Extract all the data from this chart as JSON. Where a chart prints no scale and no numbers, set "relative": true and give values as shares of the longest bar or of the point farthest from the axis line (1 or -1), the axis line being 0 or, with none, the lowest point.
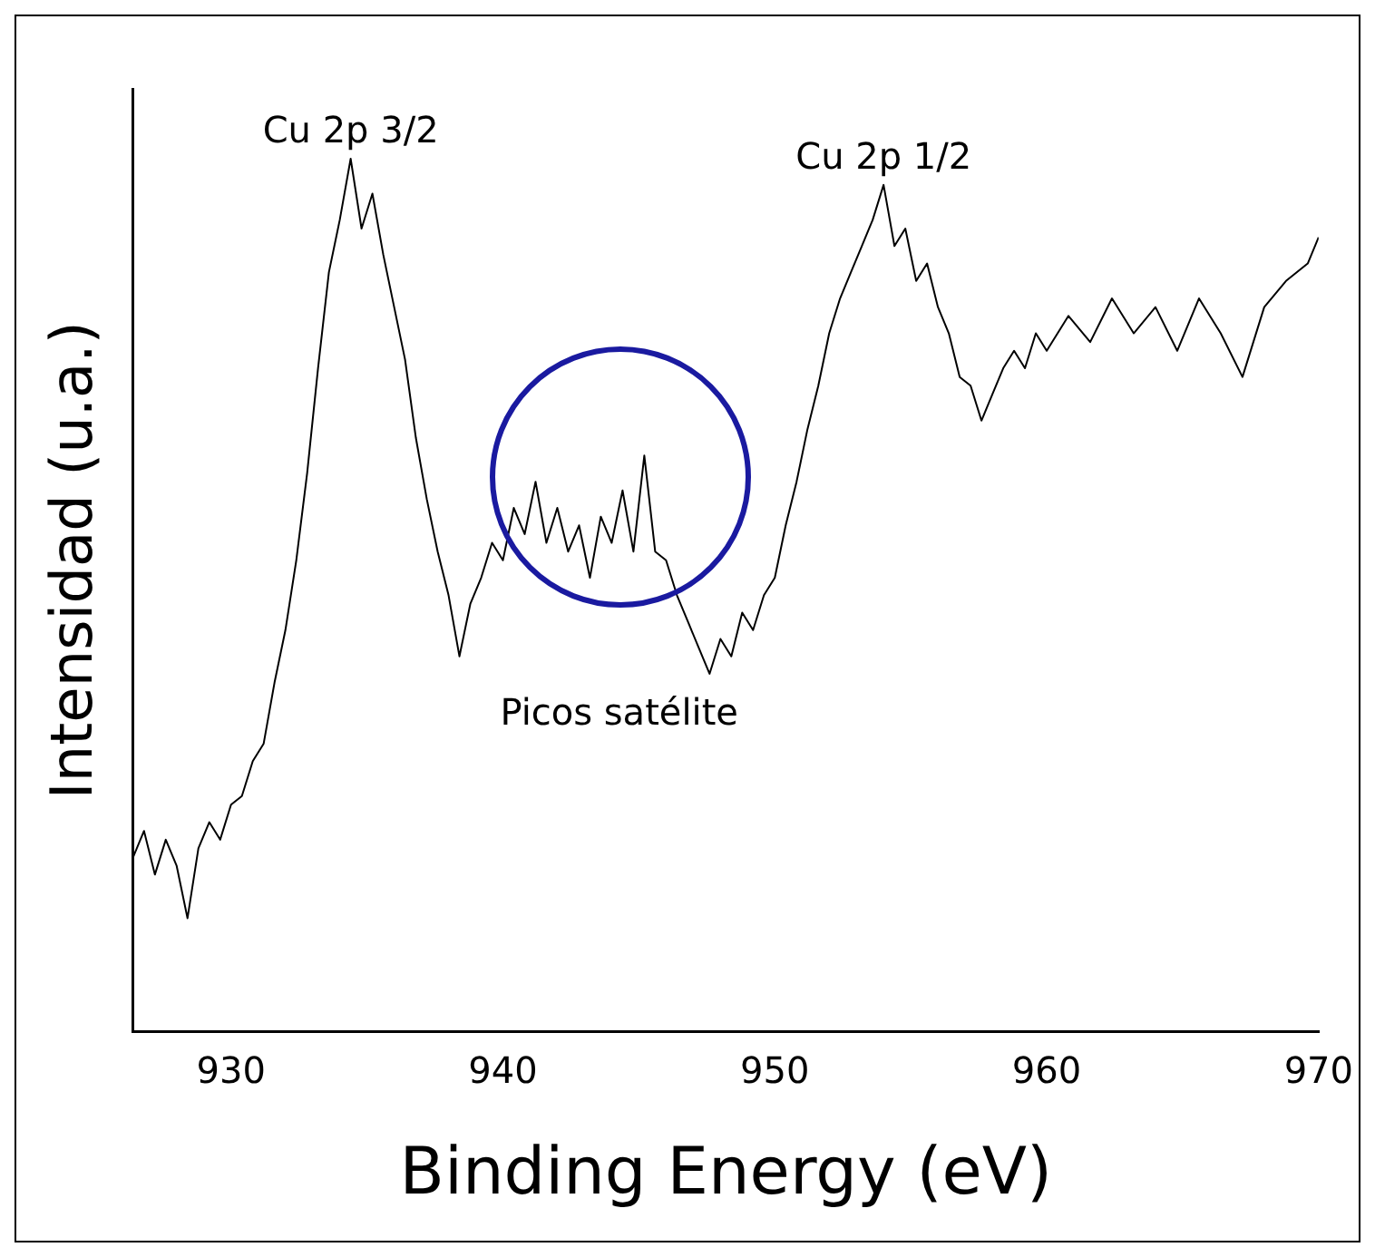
{
  "chart_data": {
    "type": "line",
    "relative": true,
    "xlabel": "Binding Energy (eV)",
    "ylabel": "Intensidad (u.a.)",
    "xlim": [
      926.4,
      970
    ],
    "xticks": [
      930,
      940,
      950,
      960,
      970
    ],
    "grid": false,
    "legend": false,
    "marker": "none",
    "line_style": "solid",
    "annotations": [
      {
        "text": "Cu 2p 3/2",
        "x": 934.4,
        "y": 1.0
      },
      {
        "text": "Cu 2p 1/2",
        "x": 954,
        "y": 0.97
      },
      "Picos satélite"
    ],
    "series": [
      {
        "color": "#000000",
        "x": [
          926.4,
          926.8,
          927.2,
          927.6,
          928,
          928.4,
          928.8,
          929.2,
          929.6,
          930,
          930.4,
          930.8,
          931.2,
          931.6,
          932,
          932.4,
          932.8,
          933.2,
          933.6,
          934,
          934.4,
          934.8,
          935.2,
          935.6,
          936,
          936.4,
          936.8,
          937.2,
          937.6,
          938,
          938.4,
          938.8,
          939.2,
          939.6,
          940,
          940.4,
          940.8,
          941.2,
          941.6,
          942,
          942.4,
          942.8,
          943.2,
          943.6,
          944,
          944.4,
          944.8,
          945.2,
          945.6,
          946,
          946.4,
          946.8,
          947.2,
          947.6,
          948,
          948.4,
          948.8,
          949.2,
          949.6,
          950,
          950.4,
          950.8,
          951.2,
          951.6,
          952,
          952.4,
          952.8,
          953.2,
          953.6,
          954,
          954.4,
          954.8,
          955.2,
          955.6,
          956,
          956.4,
          956.8,
          957.2,
          957.6,
          958,
          958.4,
          958.8,
          959.2,
          959.6,
          960,
          960.8,
          961.6,
          962.4,
          963.2,
          964,
          964.8,
          965.6,
          966.4,
          967.2,
          968,
          968.8,
          969.6,
          970
        ],
        "values": [
          0.2,
          0.23,
          0.18,
          0.22,
          0.19,
          0.13,
          0.21,
          0.24,
          0.22,
          0.26,
          0.27,
          0.31,
          0.33,
          0.4,
          0.46,
          0.54,
          0.64,
          0.76,
          0.87,
          0.93,
          1.0,
          0.92,
          0.96,
          0.89,
          0.83,
          0.77,
          0.68,
          0.61,
          0.55,
          0.5,
          0.43,
          0.49,
          0.52,
          0.56,
          0.54,
          0.6,
          0.57,
          0.63,
          0.56,
          0.6,
          0.55,
          0.58,
          0.52,
          0.59,
          0.56,
          0.62,
          0.55,
          0.66,
          0.55,
          0.54,
          0.5,
          0.47,
          0.44,
          0.41,
          0.45,
          0.43,
          0.48,
          0.46,
          0.5,
          0.52,
          0.58,
          0.63,
          0.69,
          0.74,
          0.8,
          0.84,
          0.87,
          0.9,
          0.93,
          0.97,
          0.9,
          0.92,
          0.86,
          0.88,
          0.83,
          0.8,
          0.75,
          0.74,
          0.7,
          0.73,
          0.76,
          0.78,
          0.76,
          0.8,
          0.78,
          0.82,
          0.79,
          0.84,
          0.8,
          0.83,
          0.78,
          0.84,
          0.8,
          0.75,
          0.83,
          0.86,
          0.88,
          0.91
        ]
      }
    ]
  }
}
